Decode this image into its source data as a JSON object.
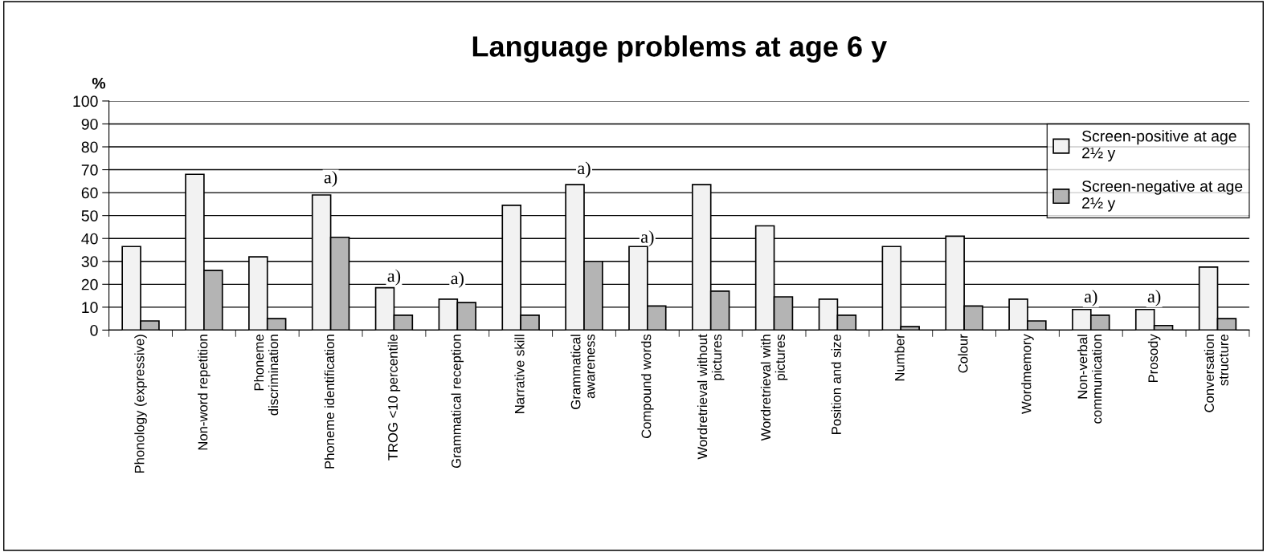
{
  "chart_data": {
    "type": "bar",
    "title": "Language problems at age 6 y",
    "ylabel": "%",
    "categories": [
      "Phonology (expressive)",
      "Non-word repetition",
      "Phoneme\ndiscrimination",
      "Phoneme identification",
      "TROG <10 percentile",
      "Grammatical reception",
      "Narrative skill",
      "Grammatical\nawareness",
      "Compound words",
      "Wordretrieval without\npictures",
      "Wordretrieval with\npictures",
      "Position and size",
      "Number",
      "Colour",
      "Wordmemory",
      "Non-verbal\ncommunication",
      "Prosody",
      "Conversation\nstructure"
    ],
    "series": [
      {
        "name": "Screen-positive at age\n2½ y",
        "color": "#f2f2f2",
        "values": [
          36.5,
          68,
          32,
          59,
          18.5,
          13.5,
          54.5,
          63.5,
          36.5,
          63.5,
          45.5,
          13.5,
          36.5,
          41,
          13.5,
          9,
          9,
          27.5
        ]
      },
      {
        "name": "Screen-negative at age\n2½ y",
        "color": "#b4b4b4",
        "values": [
          4,
          26,
          5,
          40.5,
          6.5,
          12,
          6.5,
          30,
          10.5,
          17,
          14.5,
          6.5,
          1.5,
          10.5,
          4,
          6.5,
          2,
          5
        ]
      }
    ],
    "annotations": [
      {
        "text": "a)",
        "x": "Phoneme identification",
        "y": 66
      },
      {
        "text": "a)",
        "x": "TROG <10 percentile",
        "y": 23
      },
      {
        "text": "a)",
        "x": "Grammatical reception",
        "y": 22
      },
      {
        "text": "a)",
        "x": "Grammatical\nawareness",
        "y": 70
      },
      {
        "text": "a)",
        "x": "Compound words",
        "y": 40
      },
      {
        "text": "a)",
        "x": "Non-verbal\ncommunication",
        "y": 14
      },
      {
        "text": "a)",
        "x": "Prosody",
        "y": 14
      }
    ],
    "ylim": [
      0,
      100
    ],
    "yticks": [
      0,
      10,
      20,
      30,
      40,
      50,
      60,
      70,
      80,
      90,
      100
    ],
    "grid": "y",
    "legend": "top right"
  }
}
